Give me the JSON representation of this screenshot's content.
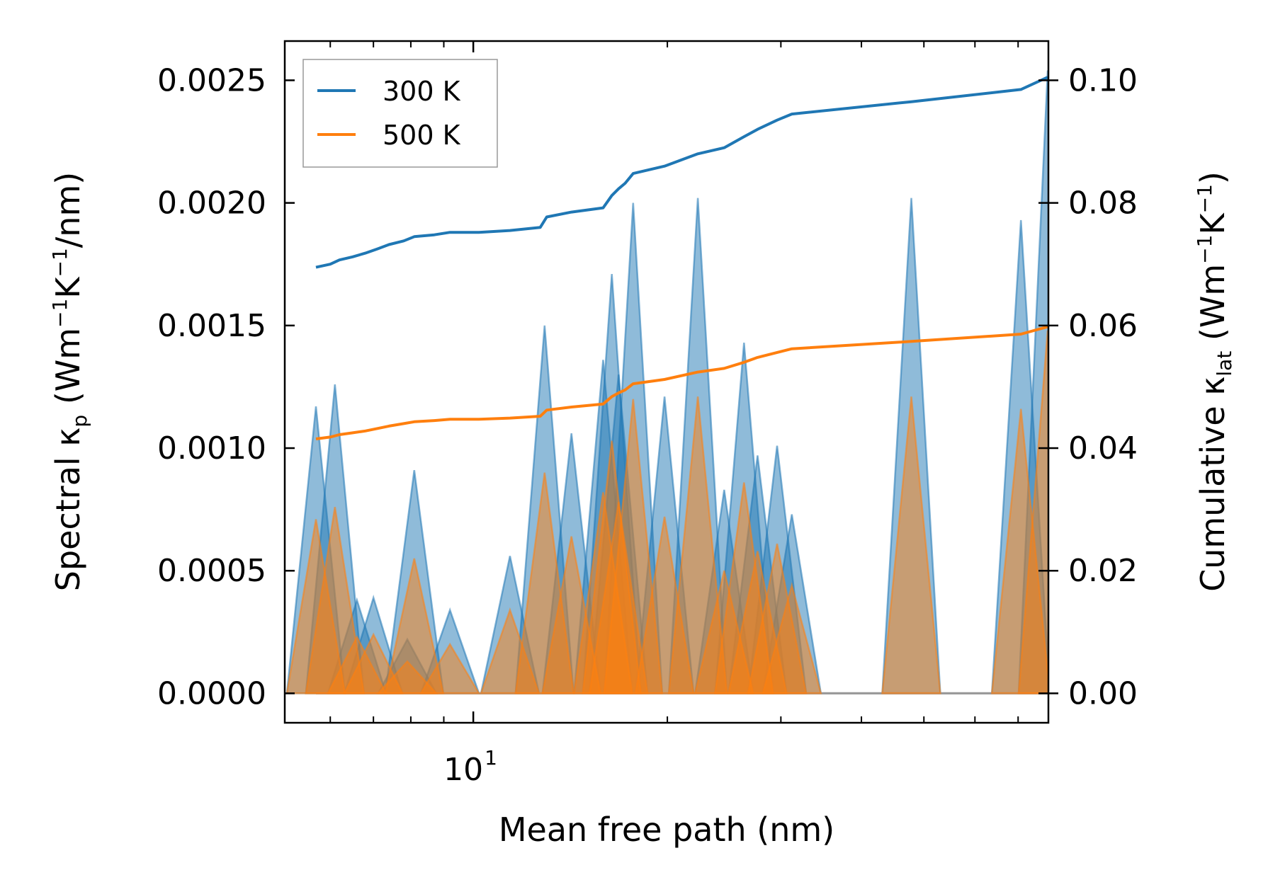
{
  "chart_data": {
    "type": "line",
    "title": "",
    "xlabel": "Mean free path (nm)",
    "ylabel_left": {
      "main": "Spectral κ",
      "sub": "p",
      "unit_prefix": " (Wm",
      "sup1": "−1",
      "unit_mid": "K",
      "sup2": "−1",
      "unit_suffix": "/nm)"
    },
    "ylabel_right": {
      "main": "Cumulative κ",
      "sub": "lat",
      "unit_prefix": " (Wm",
      "sup1": "−1",
      "unit_mid": "K",
      "sup2": "−1",
      "unit_suffix": ")"
    },
    "xscale": "log",
    "xlim": [
      5.1,
      78.0
    ],
    "ylim_left": [
      -0.00012,
      0.00266
    ],
    "ylim_right": [
      -0.0048,
      0.1064
    ],
    "x_ticks": [
      {
        "value": 10,
        "base": "10",
        "exp": "1"
      }
    ],
    "y_ticks_left": [
      {
        "value": 0.0,
        "label": "0.0000"
      },
      {
        "value": 0.0005,
        "label": "0.0005"
      },
      {
        "value": 0.001,
        "label": "0.0010"
      },
      {
        "value": 0.0015,
        "label": "0.0015"
      },
      {
        "value": 0.002,
        "label": "0.0020"
      },
      {
        "value": 0.0025,
        "label": "0.0025"
      }
    ],
    "y_ticks_right": [
      {
        "value": 0.0,
        "label": "0.00"
      },
      {
        "value": 0.02,
        "label": "0.02"
      },
      {
        "value": 0.04,
        "label": "0.04"
      },
      {
        "value": 0.06,
        "label": "0.06"
      },
      {
        "value": 0.08,
        "label": "0.08"
      },
      {
        "value": 0.1,
        "label": "0.10"
      }
    ],
    "legend_position": "upper-left",
    "series": [
      {
        "name": "300 K",
        "color": "#1f77b4",
        "spectral": [
          [
            5.7,
            0.00117
          ],
          [
            6.1,
            0.00126
          ],
          [
            6.6,
            0.00038
          ],
          [
            7.0,
            0.00039
          ],
          [
            7.9,
            0.00022
          ],
          [
            8.1,
            0.00091
          ],
          [
            9.2,
            0.00034
          ],
          [
            11.4,
            0.00056
          ],
          [
            12.9,
            0.0015
          ],
          [
            14.2,
            0.00106
          ],
          [
            15.9,
            0.00136
          ],
          [
            16.4,
            0.00171
          ],
          [
            16.8,
            0.0013
          ],
          [
            17.7,
            0.002
          ],
          [
            19.8,
            0.00121
          ],
          [
            22.3,
            0.00202
          ],
          [
            24.5,
            0.00083
          ],
          [
            26.3,
            0.00143
          ],
          [
            27.6,
            0.00097
          ],
          [
            29.6,
            0.00101
          ],
          [
            31.2,
            0.00073
          ],
          [
            47.8,
            0.00202
          ],
          [
            70.7,
            0.00193
          ],
          [
            77.8,
            0.00254
          ]
        ],
        "cumulative": [
          [
            5.7,
            0.0695
          ],
          [
            6.0,
            0.07
          ],
          [
            6.2,
            0.0707
          ],
          [
            6.5,
            0.0712
          ],
          [
            6.8,
            0.0718
          ],
          [
            7.1,
            0.0725
          ],
          [
            7.4,
            0.0732
          ],
          [
            7.8,
            0.0738
          ],
          [
            8.1,
            0.0745
          ],
          [
            8.7,
            0.0748
          ],
          [
            9.2,
            0.0752
          ],
          [
            10.2,
            0.0752
          ],
          [
            11.4,
            0.0755
          ],
          [
            12.7,
            0.076
          ],
          [
            13.0,
            0.0777
          ],
          [
            14.2,
            0.0785
          ],
          [
            15.9,
            0.0792
          ],
          [
            16.4,
            0.0812
          ],
          [
            16.8,
            0.0823
          ],
          [
            17.2,
            0.0832
          ],
          [
            17.7,
            0.0848
          ],
          [
            19.8,
            0.086
          ],
          [
            22.3,
            0.088
          ],
          [
            24.5,
            0.089
          ],
          [
            26.3,
            0.0908
          ],
          [
            27.6,
            0.092
          ],
          [
            29.6,
            0.0935
          ],
          [
            31.2,
            0.0945
          ],
          [
            47.8,
            0.0965
          ],
          [
            70.7,
            0.0985
          ],
          [
            77.8,
            0.1005
          ]
        ]
      },
      {
        "name": "500 K",
        "color": "#ff7f0e",
        "spectral": [
          [
            5.7,
            0.00071
          ],
          [
            6.1,
            0.00076
          ],
          [
            6.6,
            0.00023
          ],
          [
            7.0,
            0.00024
          ],
          [
            7.9,
            0.00013
          ],
          [
            8.1,
            0.00055
          ],
          [
            9.2,
            0.0002
          ],
          [
            11.4,
            0.00034
          ],
          [
            12.9,
            0.0009
          ],
          [
            14.2,
            0.00064
          ],
          [
            15.9,
            0.00082
          ],
          [
            16.4,
            0.00103
          ],
          [
            16.8,
            0.00078
          ],
          [
            17.7,
            0.0012
          ],
          [
            19.8,
            0.00072
          ],
          [
            22.3,
            0.00121
          ],
          [
            24.5,
            0.0005
          ],
          [
            26.3,
            0.00086
          ],
          [
            27.6,
            0.00058
          ],
          [
            29.6,
            0.00061
          ],
          [
            31.2,
            0.00044
          ],
          [
            47.8,
            0.00121
          ],
          [
            70.7,
            0.00116
          ],
          [
            77.8,
            0.00148
          ]
        ],
        "cumulative": [
          [
            5.7,
            0.0415
          ],
          [
            6.0,
            0.0418
          ],
          [
            6.2,
            0.0422
          ],
          [
            6.5,
            0.0425
          ],
          [
            6.8,
            0.0428
          ],
          [
            7.1,
            0.0432
          ],
          [
            7.4,
            0.0436
          ],
          [
            7.8,
            0.044
          ],
          [
            8.1,
            0.0443
          ],
          [
            8.7,
            0.0445
          ],
          [
            9.2,
            0.0447
          ],
          [
            10.2,
            0.0447
          ],
          [
            11.4,
            0.0449
          ],
          [
            12.7,
            0.0452
          ],
          [
            13.0,
            0.0462
          ],
          [
            14.2,
            0.0467
          ],
          [
            15.9,
            0.0472
          ],
          [
            16.4,
            0.0484
          ],
          [
            16.8,
            0.049
          ],
          [
            17.2,
            0.0495
          ],
          [
            17.7,
            0.0505
          ],
          [
            19.8,
            0.0512
          ],
          [
            22.3,
            0.0524
          ],
          [
            24.5,
            0.053
          ],
          [
            26.3,
            0.054
          ],
          [
            27.6,
            0.0548
          ],
          [
            29.6,
            0.0556
          ],
          [
            31.2,
            0.0562
          ],
          [
            47.8,
            0.0574
          ],
          [
            70.7,
            0.0586
          ],
          [
            77.8,
            0.0598
          ]
        ]
      }
    ]
  }
}
